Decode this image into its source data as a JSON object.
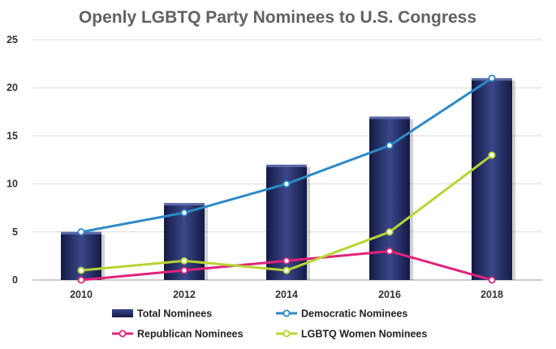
{
  "chart_data": {
    "type": "bar",
    "title": "Openly LGBTQ Party Nominees to U.S. Congress",
    "xlabel": "",
    "ylabel": "",
    "categories": [
      "2010",
      "2012",
      "2014",
      "2016",
      "2018"
    ],
    "ylim": [
      0,
      25
    ],
    "yticks": [
      0,
      5,
      10,
      15,
      20,
      25
    ],
    "grid": true,
    "legend_position": "bottom",
    "series": [
      {
        "name": "Total Nominees",
        "type": "bar",
        "color": "#27326b",
        "values": [
          5,
          8,
          12,
          17,
          21
        ]
      },
      {
        "name": "Democratic Nominees",
        "type": "line",
        "color": "#2d8ac6",
        "values": [
          5,
          7,
          10,
          14,
          21
        ]
      },
      {
        "name": "Republican Nominees",
        "type": "line",
        "color": "#e0237a",
        "values": [
          0,
          1,
          2,
          3,
          0
        ]
      },
      {
        "name": "LGBTQ Women Nominees",
        "type": "line",
        "color": "#b7d433",
        "values": [
          1,
          2,
          1,
          5,
          13
        ]
      }
    ]
  }
}
